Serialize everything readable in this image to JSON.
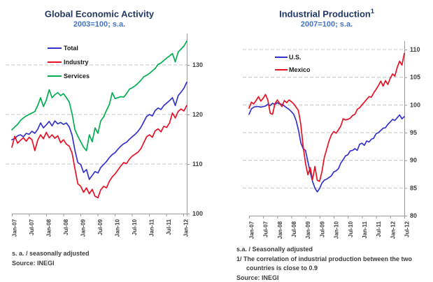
{
  "colors": {
    "title": "#1F3864",
    "subtitle": "#4472C4",
    "gridline": "#C3C3C3",
    "axis": "#9a9a9a",
    "tick_text": "#3f3f3f",
    "legend_text": "#1a1a1a",
    "series_blue": "#3333CC",
    "series_red": "#E81123",
    "series_green": "#00B050"
  },
  "chart_data": [
    {
      "type": "line",
      "title": "Global Economic Activity",
      "title_sup": "",
      "subtitle": "2003=100; s.a.",
      "xlabel": "",
      "ylabel": "",
      "frequency": "monthly",
      "x_start": "Jan-2007",
      "x_end": "Feb-2012",
      "x_tick_labels": [
        "Jan-07",
        "Jul-07",
        "Jan-08",
        "Jul-08",
        "Jan-09",
        "Jul-09",
        "Jan-10",
        "Jul-10",
        "Jan-11",
        "Jul-11",
        "Jan-12"
      ],
      "y_ticks": [
        100,
        110,
        120,
        130
      ],
      "ylim": [
        100,
        136.3
      ],
      "y_axis_side": "right",
      "grid": "dashed-horizontal",
      "legend_position": "top-left-inside",
      "series": [
        {
          "name": "Total",
          "color": "#3333CC",
          "values": [
            114.9,
            115.2,
            115.7,
            115.9,
            115.5,
            116.2,
            116.0,
            116.6,
            116.2,
            117.0,
            118.3,
            117.3,
            117.9,
            118.6,
            117.7,
            118.7,
            118.1,
            118.4,
            118.0,
            118.3,
            117.5,
            115.8,
            112.7,
            110.3,
            109.9,
            108.3,
            108.9,
            106.9,
            107.7,
            108.5,
            108.2,
            109.3,
            109.9,
            110.5,
            111.3,
            111.9,
            112.3,
            113.0,
            113.6,
            114.1,
            114.4,
            115.0,
            115.5,
            116.0,
            116.6,
            117.4,
            118.5,
            119.6,
            120.0,
            119.7,
            120.8,
            121.3,
            121.0,
            121.8,
            122.3,
            122.8,
            123.4,
            121.8,
            123.8,
            124.5,
            125.3,
            126.5
          ]
        },
        {
          "name": "Industry",
          "color": "#E81123",
          "values": [
            113.4,
            115.6,
            114.2,
            114.8,
            115.3,
            114.6,
            115.4,
            114.9,
            112.7,
            114.8,
            115.9,
            115.1,
            116.4,
            115.3,
            115.9,
            115.2,
            115.7,
            114.3,
            114.9,
            114.0,
            113.6,
            112.2,
            109.0,
            106.0,
            105.5,
            104.3,
            105.2,
            104.0,
            104.9,
            103.5,
            103.2,
            104.8,
            105.5,
            105.2,
            106.5,
            107.4,
            108.0,
            108.8,
            109.6,
            110.3,
            110.1,
            111.0,
            111.6,
            112.0,
            112.4,
            113.1,
            114.3,
            115.5,
            115.9,
            115.4,
            116.7,
            117.1,
            116.5,
            117.6,
            117.4,
            118.3,
            120.3,
            119.3,
            120.6,
            121.1,
            120.7,
            121.8
          ]
        },
        {
          "name": "Services",
          "color": "#00B050",
          "values": [
            116.9,
            117.5,
            118.0,
            118.8,
            119.3,
            119.7,
            120.0,
            120.3,
            120.6,
            121.8,
            123.4,
            121.6,
            122.9,
            125.0,
            123.4,
            124.0,
            124.4,
            123.8,
            124.2,
            123.4,
            122.5,
            120.1,
            116.9,
            115.6,
            114.5,
            113.4,
            112.7,
            115.9,
            114.5,
            117.3,
            116.2,
            118.7,
            119.5,
            120.8,
            122.0,
            124.4,
            123.2,
            123.4,
            123.6,
            123.5,
            124.2,
            125.1,
            125.4,
            125.8,
            126.3,
            126.9,
            127.6,
            127.9,
            128.3,
            128.8,
            129.3,
            130.1,
            130.4,
            130.9,
            131.4,
            131.8,
            132.3,
            130.6,
            132.6,
            133.2,
            133.8,
            134.8
          ]
        }
      ],
      "footnotes": [
        "s. a. / seasonally adjusted",
        "Source: INEGI"
      ]
    },
    {
      "type": "line",
      "title": "Industrial Production",
      "title_sup": "1",
      "subtitle": "2007=100; s.a.",
      "xlabel": "",
      "ylabel": "",
      "frequency": "monthly",
      "x_start": "Jan-2007",
      "x_end": "Jul-2012",
      "x_tick_labels": [
        "Jan-07",
        "Jul-07",
        "Jan-08",
        "Jul-08",
        "Jan-09",
        "Jul-09",
        "Jan-10",
        "Jul-10",
        "Jan-11",
        "Jul-11",
        "Jan-12",
        "Jul-12"
      ],
      "y_ticks": [
        80,
        85,
        90,
        95,
        100,
        105,
        110
      ],
      "ylim": [
        80,
        111.5
      ],
      "y_axis_side": "right",
      "grid": "dashed-horizontal",
      "legend_position": "top-left-inside",
      "series": [
        {
          "name": "U.S.",
          "color": "#3333CC",
          "values": [
            98.3,
            99.3,
            99.6,
            99.7,
            99.7,
            99.6,
            99.7,
            99.8,
            100.1,
            99.9,
            100.3,
            100.1,
            100.4,
            100.2,
            100.1,
            99.8,
            99.5,
            99.2,
            98.8,
            98.3,
            97.2,
            95.5,
            93.2,
            92.1,
            91.8,
            89.8,
            87.8,
            86.2,
            85.0,
            84.3,
            84.9,
            85.9,
            86.4,
            86.6,
            86.9,
            87.2,
            87.9,
            88.1,
            88.5,
            89.5,
            90.1,
            90.8,
            91.0,
            91.7,
            91.8,
            92.1,
            91.8,
            92.9,
            93.1,
            92.7,
            93.5,
            93.3,
            93.8,
            94.0,
            94.8,
            95.0,
            95.4,
            95.8,
            95.9,
            96.5,
            96.9,
            97.4,
            97.2,
            97.7,
            98.2,
            97.5,
            97.9
          ]
        },
        {
          "name": "Mexico",
          "color": "#E81123",
          "values": [
            99.4,
            100.5,
            100.2,
            100.8,
            101.5,
            100.7,
            101.2,
            101.9,
            100.9,
            98.5,
            98.3,
            100.2,
            100.9,
            100.3,
            99.7,
            100.8,
            100.4,
            100.9,
            100.6,
            100.2,
            99.6,
            99.0,
            96.5,
            92.5,
            89.5,
            87.4,
            88.7,
            86.5,
            88.9,
            86.4,
            86.2,
            88.0,
            90.5,
            92.0,
            93.5,
            94.6,
            95.2,
            94.9,
            95.5,
            96.2,
            97.5,
            97.3,
            97.4,
            97.6,
            98.1,
            98.3,
            99.2,
            99.5,
            100.0,
            100.5,
            101.0,
            101.5,
            101.4,
            102.2,
            102.8,
            103.5,
            104.3,
            103.4,
            104.4,
            103.7,
            104.8,
            105.6,
            105.2,
            106.8,
            107.9,
            107.2,
            109.3
          ]
        }
      ],
      "footnotes": [
        "s.a. / Seasonally adjusted",
        "1/ The correlation of industrial production between the two countries is close to 0.9",
        "Source: INEGI"
      ]
    }
  ]
}
